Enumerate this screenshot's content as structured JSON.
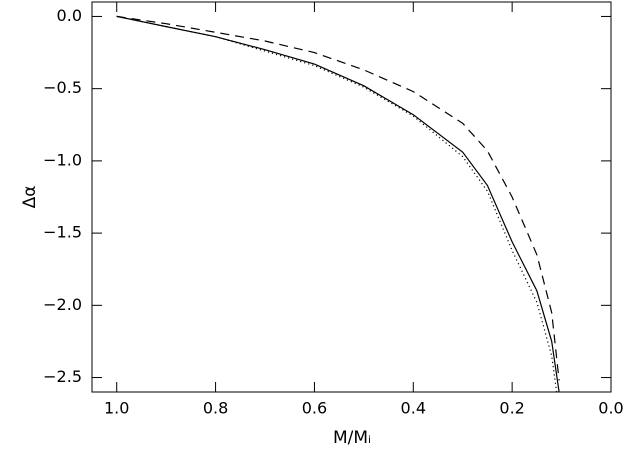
{
  "chart_data": {
    "type": "line",
    "x_label": "M/Mᵢ",
    "y_label": "Δα",
    "xlim": [
      1.05,
      0
    ],
    "ylim": [
      -2.6,
      0.1
    ],
    "xticks": [
      {
        "value": 1.0,
        "label": "1.0"
      },
      {
        "value": 0.8,
        "label": "0.8"
      },
      {
        "value": 0.6,
        "label": "0.6"
      },
      {
        "value": 0.4,
        "label": "0.4"
      },
      {
        "value": 0.2,
        "label": "0.2"
      },
      {
        "value": 0,
        "label": "0.0"
      }
    ],
    "yticks": [
      {
        "value": 0,
        "label": "0.0"
      },
      {
        "value": -0.5,
        "label": "−0.5"
      },
      {
        "value": -1.0,
        "label": "−1.0"
      },
      {
        "value": -1.5,
        "label": "−1.5"
      },
      {
        "value": -2.0,
        "label": "−2.0"
      },
      {
        "value": -2.5,
        "label": "−2.5"
      }
    ],
    "series": [
      {
        "color": "#000000",
        "dash": "solid",
        "x": [
          1.0,
          0.9,
          0.8,
          0.7,
          0.6,
          0.5,
          0.4,
          0.3,
          0.25,
          0.2,
          0.15,
          0.12,
          0.105
        ],
        "values": [
          0,
          -0.07,
          -0.14,
          -0.23,
          -0.33,
          -0.48,
          -0.68,
          -0.94,
          -1.17,
          -1.56,
          -1.9,
          -2.25,
          -2.6
        ]
      },
      {
        "color": "#000000",
        "dash": "dotted",
        "x": [
          1.0,
          0.9,
          0.8,
          0.7,
          0.6,
          0.5,
          0.4,
          0.3,
          0.25,
          0.2,
          0.15,
          0.12,
          0.11
        ],
        "values": [
          0,
          -0.07,
          -0.14,
          -0.24,
          -0.34,
          -0.49,
          -0.69,
          -0.97,
          -1.21,
          -1.62,
          -1.98,
          -2.35,
          -2.6
        ]
      },
      {
        "color": "#000000",
        "dash": "dashed",
        "x": [
          1.0,
          0.9,
          0.8,
          0.7,
          0.6,
          0.5,
          0.4,
          0.3,
          0.25,
          0.2,
          0.15,
          0.12,
          0.105
        ],
        "values": [
          0,
          -0.05,
          -0.11,
          -0.17,
          -0.25,
          -0.37,
          -0.52,
          -0.74,
          -0.93,
          -1.25,
          -1.65,
          -2.05,
          -2.52
        ]
      }
    ]
  }
}
